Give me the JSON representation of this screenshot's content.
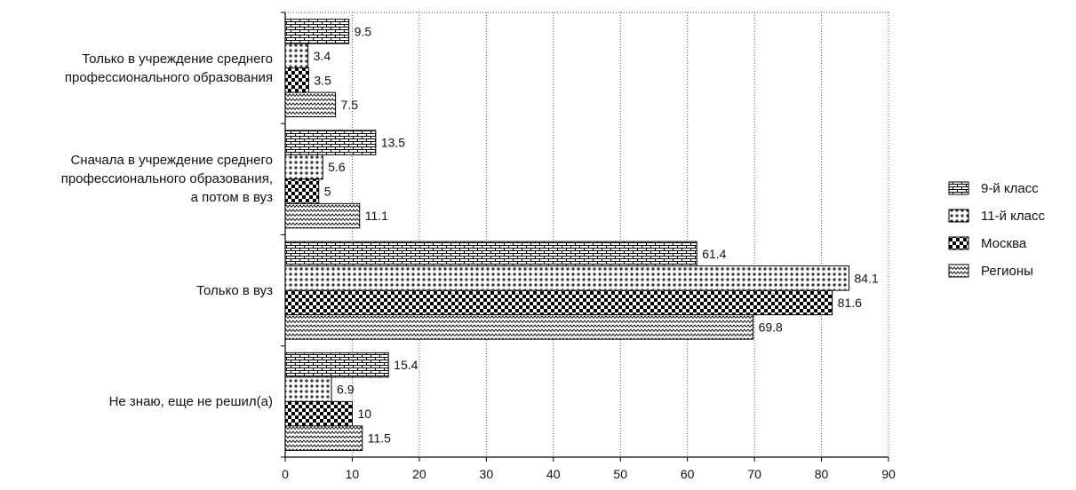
{
  "chart_data": {
    "type": "bar",
    "orientation": "horizontal",
    "categories": [
      [
        "Только в учреждение среднего",
        "профессионального образования"
      ],
      [
        "Сначала в учреждение среднего",
        "профессионального образования,",
        "а потом в вуз"
      ],
      [
        "Только в вуз"
      ],
      [
        "Не знаю, еще не решил(а)"
      ]
    ],
    "series": [
      {
        "name": "9-й класс",
        "values": [
          9.5,
          13.5,
          61.4,
          15.4
        ],
        "value_labels": [
          "9.5",
          "13.5",
          "61.4",
          "15.4"
        ],
        "pattern": "brick"
      },
      {
        "name": "11-й класс",
        "values": [
          3.4,
          5.6,
          84.1,
          6.9
        ],
        "value_labels": [
          "3.4",
          "5.6",
          "84.1",
          "6.9"
        ],
        "pattern": "cross"
      },
      {
        "name": "Москва",
        "values": [
          3.5,
          5,
          81.6,
          10
        ],
        "value_labels": [
          "3.5",
          "5",
          "81.6",
          "10"
        ],
        "pattern": "checker"
      },
      {
        "name": "Регионы",
        "values": [
          7.5,
          11.1,
          69.8,
          11.5
        ],
        "value_labels": [
          "7.5",
          "11.1",
          "69.8",
          "11.5"
        ],
        "pattern": "wave"
      }
    ],
    "xlim": [
      0,
      90
    ],
    "xticks": [
      "0",
      "10",
      "20",
      "30",
      "40",
      "50",
      "60",
      "70",
      "80",
      "90"
    ],
    "grid": true,
    "legend_position": "right",
    "title": "",
    "xlabel": "",
    "ylabel": ""
  }
}
